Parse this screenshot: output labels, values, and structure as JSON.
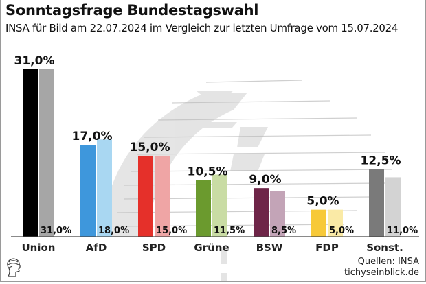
{
  "header": {
    "title": "Sonntagsfrage Bundestagswahl",
    "subtitle": "INSA für Bild am 22.07.2024 im Vergleich zur letzten Umfrage vom 15.07.2024"
  },
  "footer": {
    "source": "Quellen: INSA",
    "site": "tichyseinblick.de",
    "logo_icon": "hermes-head-logo"
  },
  "chart_data": {
    "type": "bar",
    "title": "Sonntagsfrage Bundestagswahl",
    "subtitle": "INSA für Bild am 22.07.2024 im Vergleich zur letzten Umfrage vom 15.07.2024",
    "xlabel": "",
    "ylabel": "",
    "ylim": [
      0,
      31
    ],
    "grid": false,
    "categories": [
      "Union",
      "AfD",
      "SPD",
      "Grüne",
      "BSW",
      "FDP",
      "Sonst."
    ],
    "series": [
      {
        "name": "22.07.2024",
        "values": [
          31.0,
          17.0,
          15.0,
          10.5,
          9.0,
          5.0,
          12.5
        ],
        "labels": [
          "31,0%",
          "17,0%",
          "15,0%",
          "10,5%",
          "9,0%",
          "5,0%",
          "12,5%"
        ],
        "colors": [
          "#000000",
          "#3e97dc",
          "#e5302a",
          "#6b9a2e",
          "#6e2548",
          "#f7c938",
          "#7a7a7a"
        ]
      },
      {
        "name": "15.07.2024",
        "values": [
          31.0,
          18.0,
          15.0,
          11.5,
          8.5,
          5.0,
          11.0
        ],
        "labels": [
          "31,0%",
          "18,0%",
          "15,0%",
          "11,5%",
          "8,5%",
          "5,0%",
          "11,0%"
        ],
        "colors": [
          "#a6a6a6",
          "#a9d7f2",
          "#efa5a5",
          "#c9dca4",
          "#c3a4b7",
          "#faeaa6",
          "#d3d3d3"
        ]
      }
    ]
  }
}
